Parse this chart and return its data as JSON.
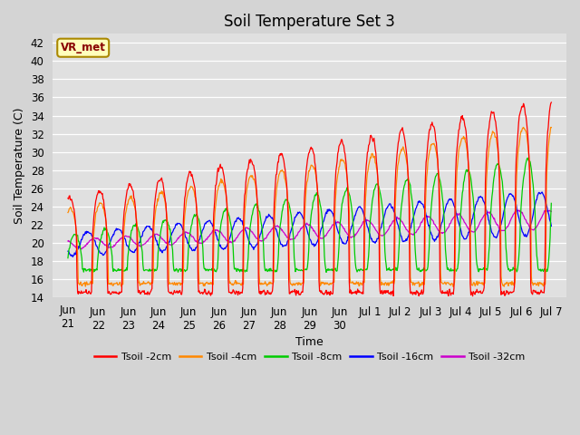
{
  "title": "Soil Temperature Set 3",
  "xlabel": "Time",
  "ylabel": "Soil Temperature (C)",
  "ylim": [
    14,
    43
  ],
  "xlim": [
    -0.5,
    16.5
  ],
  "yticks": [
    14,
    16,
    18,
    20,
    22,
    24,
    26,
    28,
    30,
    32,
    34,
    36,
    38,
    40,
    42
  ],
  "fig_bg_color": "#d4d4d4",
  "plot_bg_color": "#e0e0e0",
  "grid_color": "#ffffff",
  "series_colors": [
    "#ff0000",
    "#ff8800",
    "#00cc00",
    "#0000ff",
    "#cc00cc"
  ],
  "series_labels": [
    "Tsoil -2cm",
    "Tsoil -4cm",
    "Tsoil -8cm",
    "Tsoil -16cm",
    "Tsoil -32cm"
  ],
  "annotation_text": "VR_met",
  "title_fontsize": 12,
  "axis_fontsize": 9,
  "tick_fontsize": 8.5
}
